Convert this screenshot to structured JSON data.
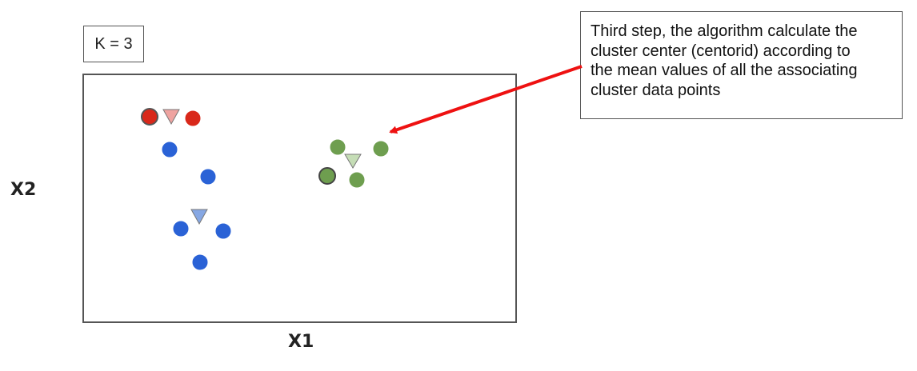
{
  "k_label": "K = 3",
  "axis": {
    "x_label": "X1",
    "y_label": "X2"
  },
  "annotation": {
    "lines": [
      "Third step, the algorithm calculate the",
      "cluster center (centorid) according to",
      "the mean values of all the associating",
      "cluster data points"
    ],
    "arrow_color": "#ee1111"
  },
  "clusters": [
    {
      "name": "red",
      "color": "#d9281a",
      "centroid_color": "#efa3a0"
    },
    {
      "name": "blue",
      "color": "#2a62d6",
      "centroid_color": "#86a7e3"
    },
    {
      "name": "green",
      "color": "#6e9e4f",
      "centroid_color": "#c5ddb6"
    }
  ]
}
